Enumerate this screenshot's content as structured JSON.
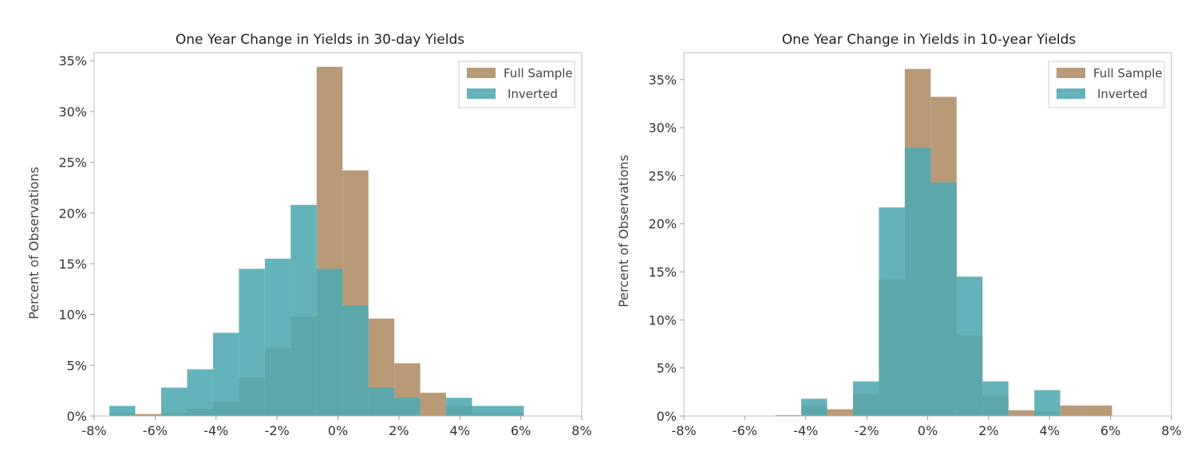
{
  "colors": {
    "full_sample": "#b89a77",
    "inverted": "#4fa9b0",
    "inverted_alpha": 0.88
  },
  "chart_data": [
    {
      "type": "bar",
      "title": "One Year Change in Yields in 30-day Yields",
      "xlabel": "",
      "ylabel": "Percent of Observations",
      "xlim": [
        -8,
        8
      ],
      "ylim": [
        0,
        35.8
      ],
      "xticks": [
        -8,
        -6,
        -4,
        -2,
        0,
        2,
        4,
        6,
        8
      ],
      "xtick_labels": [
        "-8%",
        "-6%",
        "-4%",
        "-2%",
        "0%",
        "2%",
        "4%",
        "6%",
        "8%"
      ],
      "yticks": [
        0,
        5,
        10,
        15,
        20,
        25,
        30,
        35
      ],
      "ytick_labels": [
        "0%",
        "5%",
        "10%",
        "15%",
        "20%",
        "25%",
        "30%",
        "35%"
      ],
      "legend_position": "top-right",
      "bin_edges": [
        -7.5,
        -6.65,
        -5.8,
        -4.95,
        -4.1,
        -3.25,
        -2.4,
        -1.55,
        -0.7,
        0.15,
        1.0,
        1.85,
        2.7,
        3.55,
        4.4,
        5.25,
        6.1
      ],
      "series": [
        {
          "name": "Full Sample",
          "values": [
            0.3,
            0.2,
            0.3,
            0.7,
            1.4,
            3.8,
            6.7,
            9.8,
            34.4,
            24.2,
            9.6,
            5.2,
            2.3,
            1.0,
            0.3,
            0.3
          ]
        },
        {
          "name": "Inverted",
          "values": [
            1.0,
            0.0,
            2.8,
            4.6,
            8.2,
            14.5,
            15.5,
            20.8,
            14.5,
            10.9,
            2.8,
            1.8,
            0.0,
            1.8,
            1.0,
            1.0
          ]
        }
      ]
    },
    {
      "type": "bar",
      "title": "One Year Change in Yields in 10-year Yields",
      "xlabel": "",
      "ylabel": "Percent of Observations",
      "xlim": [
        -8,
        8
      ],
      "ylim": [
        0,
        37.8
      ],
      "xticks": [
        -8,
        -6,
        -4,
        -2,
        0,
        2,
        4,
        6,
        8
      ],
      "xtick_labels": [
        "-8%",
        "-6%",
        "-4%",
        "-2%",
        "0%",
        "2%",
        "4%",
        "6%",
        "8%"
      ],
      "yticks": [
        0,
        5,
        10,
        15,
        20,
        25,
        30,
        35
      ],
      "ytick_labels": [
        "0%",
        "5%",
        "10%",
        "15%",
        "20%",
        "25%",
        "30%",
        "35%"
      ],
      "legend_position": "top-right",
      "bin_edges": [
        -5.0,
        -4.15,
        -3.3,
        -2.45,
        -1.6,
        -0.75,
        0.1,
        0.95,
        1.8,
        2.65,
        3.5,
        4.35,
        5.2,
        6.05
      ],
      "series": [
        {
          "name": "Full Sample",
          "values": [
            0.1,
            1.1,
            0.7,
            2.3,
            14.2,
            36.1,
            33.2,
            8.4,
            2.1,
            0.6,
            0.5,
            1.1,
            1.1
          ]
        },
        {
          "name": "Inverted",
          "values": [
            0.0,
            1.8,
            0.0,
            3.6,
            21.7,
            27.9,
            24.3,
            14.5,
            3.6,
            0.0,
            2.7,
            0.0,
            0.0
          ]
        }
      ]
    }
  ]
}
